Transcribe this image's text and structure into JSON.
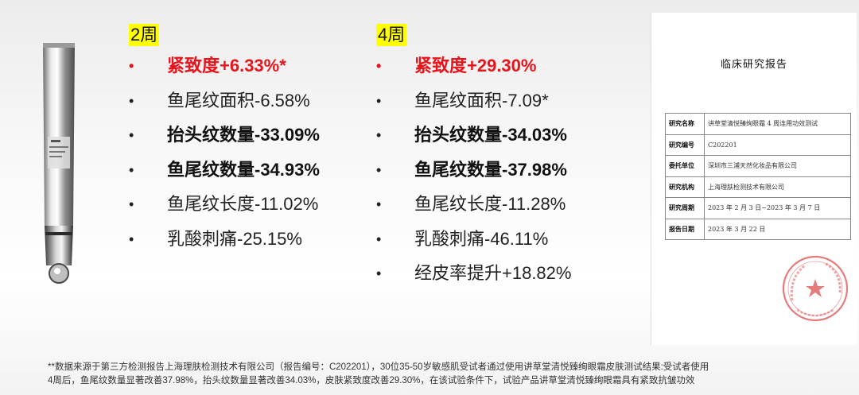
{
  "week2": {
    "label": "2周",
    "items": [
      {
        "text": "紧致度+6.33%*"
      },
      {
        "text": "鱼尾纹面积-6.58%"
      },
      {
        "text": "抬头纹数量-33.09%"
      },
      {
        "text": "鱼尾纹数量-34.93%"
      },
      {
        "text": "鱼尾纹长度-11.02%"
      },
      {
        "text": "乳酸刺痛-25.15%"
      }
    ]
  },
  "week4": {
    "label": "4周",
    "items": [
      {
        "text": "紧致度+29.30%"
      },
      {
        "text": "鱼尾纹面积-7.09*"
      },
      {
        "text": "抬头纹数量-34.03%"
      },
      {
        "text": "鱼尾纹数量-37.98%"
      },
      {
        "text": "鱼尾纹长度-11.28%"
      },
      {
        "text": "乳酸刺痛-46.11%"
      },
      {
        "text": "经皮率提升+18.82%"
      }
    ]
  },
  "bullet_char": "•",
  "colors": {
    "highlight": "#ffff00",
    "accent_red": "#e8141b",
    "stamp_red": "#e05a5a"
  },
  "report": {
    "title": "临床研究报告",
    "rows": [
      {
        "key": "研究名称",
        "value": "讲草堂清悦臻绚眼霜 4 周连用功效测试"
      },
      {
        "key": "研究编号",
        "value": "C202201"
      },
      {
        "key": "委托单位",
        "value": "深圳市三浦天然化妆品有限公司"
      },
      {
        "key": "研究机构",
        "value": "上海理肤检测技术有限公司"
      },
      {
        "key": "研究周期",
        "value": "2023 年 2 月 3 日~2023 年 3 月 7 日"
      },
      {
        "key": "报告日期",
        "value": "2023 年 3 月 22 日"
      }
    ],
    "stamp_text": "上海理肤检测技术有限公司"
  },
  "footnote": {
    "line1": "**数据来源于第三方检测报告上海理肤检测技术有限公司（报告编号：C202201），30位35-50岁敏感肌受试者通过使用讲草堂清悦臻绚眼霜皮肤测试结果:受试者使用",
    "line2": "4周后，鱼尾纹数量显著改善37.98%，抬头纹数量显著改善34.03%，皮肤紧致度改善29.30%，在该试验条件下，试验产品讲草堂清悦臻绚眼霜具有紧致抗皱功效"
  }
}
